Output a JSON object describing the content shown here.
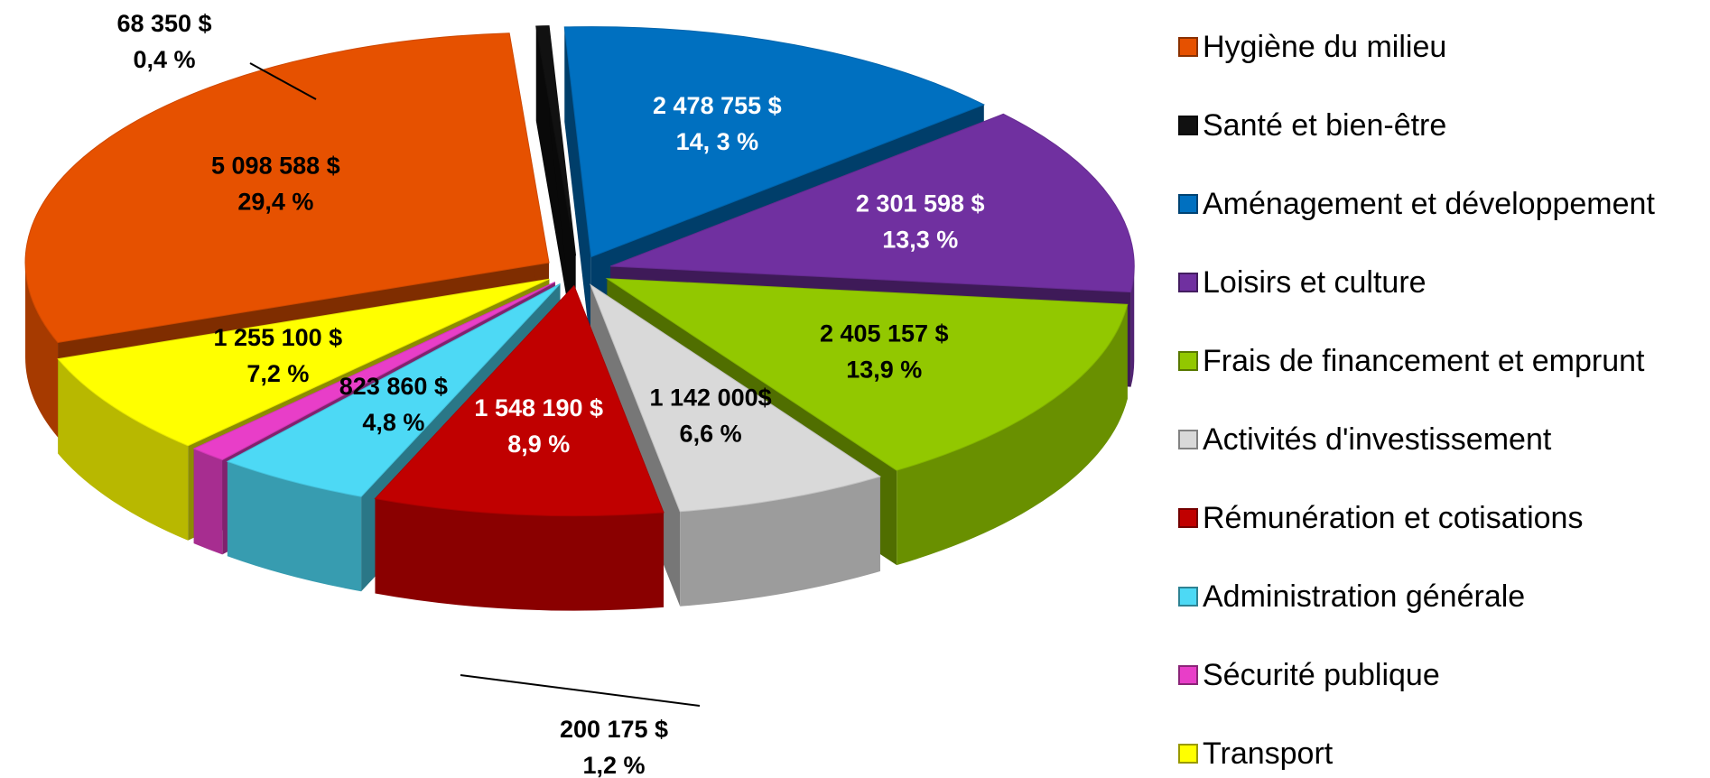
{
  "chart_data": {
    "type": "pie",
    "categories": [
      "Hygiène du milieu",
      "Santé et bien-être",
      "Aménagement et développement",
      "Loisirs et culture",
      "Frais de financement et emprunt",
      "Activités d'investissement",
      "Rémunération et cotisations",
      "Administration générale",
      "Sécurité publique",
      "Transport"
    ],
    "values": [
      5098588,
      68350,
      2478755,
      2301598,
      2405157,
      1142000,
      1548190,
      823860,
      200175,
      1255100
    ],
    "value_labels": [
      "5 098 588 $",
      "68 350 $",
      "2 478 755 $",
      "2 301 598 $",
      "2 405 157 $",
      "1 142 000$",
      "1 548 190 $",
      "823 860 $",
      "200 175 $",
      "1 255 100 $"
    ],
    "percents": [
      29.4,
      0.4,
      14.3,
      13.3,
      13.9,
      6.6,
      8.9,
      4.8,
      1.2,
      7.2
    ],
    "percent_labels": [
      "29,4 %",
      "0,4 %",
      "14, 3 %",
      "13,3 %",
      "13,9 %",
      "6,6 %",
      "8,9 %",
      "4,8 %",
      "1,2 %",
      "7,2 %"
    ],
    "colors": [
      "#e65100",
      "#111111",
      "#0070c0",
      "#7030a0",
      "#92c800",
      "#d9d9d9",
      "#c00000",
      "#4dd9f5",
      "#e83ec8",
      "#ffff00"
    ],
    "label_colors": [
      "#000000",
      "#000000",
      "#ffffff",
      "#ffffff",
      "#000000",
      "#000000",
      "#ffffff",
      "#000000",
      "#000000",
      "#000000"
    ],
    "legend": "right"
  }
}
